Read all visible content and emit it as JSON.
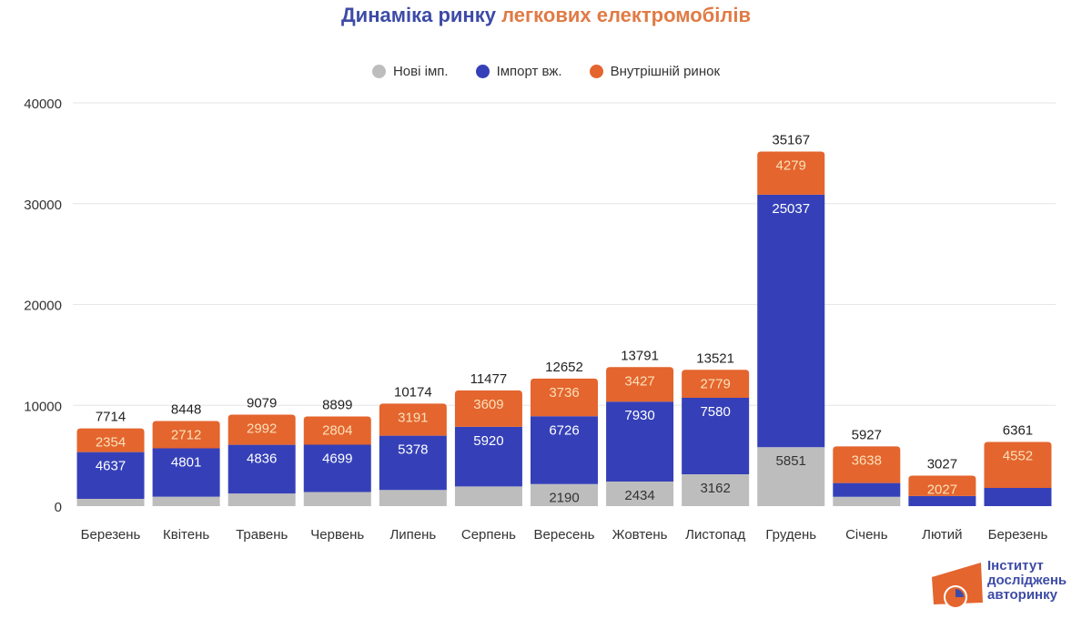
{
  "title": {
    "part1": "Динаміка ринку",
    "part2": "легкових електромобілів",
    "color1": "#3D4BA6",
    "color2": "#E07B45"
  },
  "logo": {
    "lines": [
      "Інститут",
      "досліджень",
      "авторинку"
    ]
  },
  "chart_data": {
    "type": "bar",
    "stacked": true,
    "title": "Динаміка ринку легкових електромобілів",
    "xlabel": "",
    "ylabel": "",
    "ylim": [
      0,
      40000
    ],
    "yticks": [
      0,
      10000,
      20000,
      30000,
      40000
    ],
    "grid": true,
    "legend_position": "top",
    "categories": [
      "Березень",
      "Квітень",
      "Травень",
      "Червень",
      "Липень",
      "Серпень",
      "Вересень",
      "Жовтень",
      "Листопад",
      "Грудень",
      "Січень",
      "Лютий",
      "Березень"
    ],
    "series": [
      {
        "name": "Нові імп.",
        "color": "#BDBDBD",
        "values": [
          723,
          935,
          1251,
          1396,
          1605,
          1948,
          2190,
          2434,
          3162,
          5851,
          930,
          0,
          0
        ],
        "labels": [
          null,
          null,
          null,
          null,
          null,
          null,
          "2190",
          "2434",
          "3162",
          "5851",
          null,
          null,
          null
        ]
      },
      {
        "name": "Імпорт вж.",
        "color": "#3540B8",
        "values": [
          4637,
          4801,
          4836,
          4699,
          5378,
          5920,
          6726,
          7930,
          7580,
          25037,
          1359,
          1000,
          1809
        ],
        "labels": [
          "4637",
          "4801",
          "4836",
          "4699",
          "5378",
          "5920",
          "6726",
          "7930",
          "7580",
          "25037",
          null,
          null,
          null
        ]
      },
      {
        "name": "Внутрішній ринок",
        "color": "#E4652E",
        "values": [
          2354,
          2712,
          2992,
          2804,
          3191,
          3609,
          3736,
          3427,
          2779,
          4279,
          3638,
          2027,
          4552
        ],
        "labels": [
          "2354",
          "2712",
          "2992",
          "2804",
          "3191",
          "3609",
          "3736",
          "3427",
          "2779",
          "4279",
          "3638",
          "2027",
          "4552"
        ]
      }
    ],
    "totals": [
      7714,
      8448,
      9079,
      8899,
      10174,
      11477,
      12652,
      13791,
      13521,
      35167,
      5927,
      3027,
      6361
    ]
  }
}
